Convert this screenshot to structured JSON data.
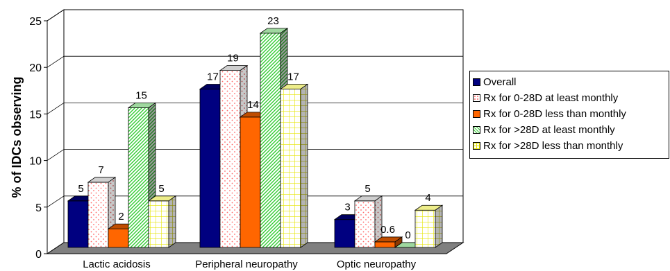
{
  "chart_data": {
    "type": "bar",
    "title": "",
    "xlabel": "",
    "ylabel": "% of IDCs observing",
    "ylim": [
      0,
      25
    ],
    "yticks": [
      "0",
      "5",
      "10",
      "15",
      "20",
      "25"
    ],
    "grid": true,
    "legend_position": "right",
    "categories": [
      "Lactic acidosis",
      "Peripheral neuropathy",
      "Optic neuropathy"
    ],
    "series": [
      {
        "name": "Overall",
        "values": [
          5,
          17,
          3
        ],
        "labels": [
          "5",
          "17",
          "3"
        ],
        "color": "#000080",
        "pattern": "solid"
      },
      {
        "name": "Rx for 0-28D at least monthly",
        "values": [
          7,
          19,
          5
        ],
        "labels": [
          "7",
          "19",
          "5"
        ],
        "color": "#ff6666",
        "pattern": "dots"
      },
      {
        "name": "Rx for 0-28D less than monthly",
        "values": [
          2,
          14,
          0.6
        ],
        "labels": [
          "2",
          "14",
          "0.6"
        ],
        "color": "#ff6600",
        "pattern": "solid"
      },
      {
        "name": "Rx for >28D at least monthly",
        "values": [
          15,
          23,
          0
        ],
        "labels": [
          "15",
          "23",
          "0"
        ],
        "color": "#33cc33",
        "pattern": "diagonal"
      },
      {
        "name": "Rx for >28D less than monthly",
        "values": [
          5,
          17,
          4
        ],
        "labels": [
          "5",
          "17",
          "4"
        ],
        "color": "#ffff00",
        "pattern": "grid"
      }
    ]
  }
}
